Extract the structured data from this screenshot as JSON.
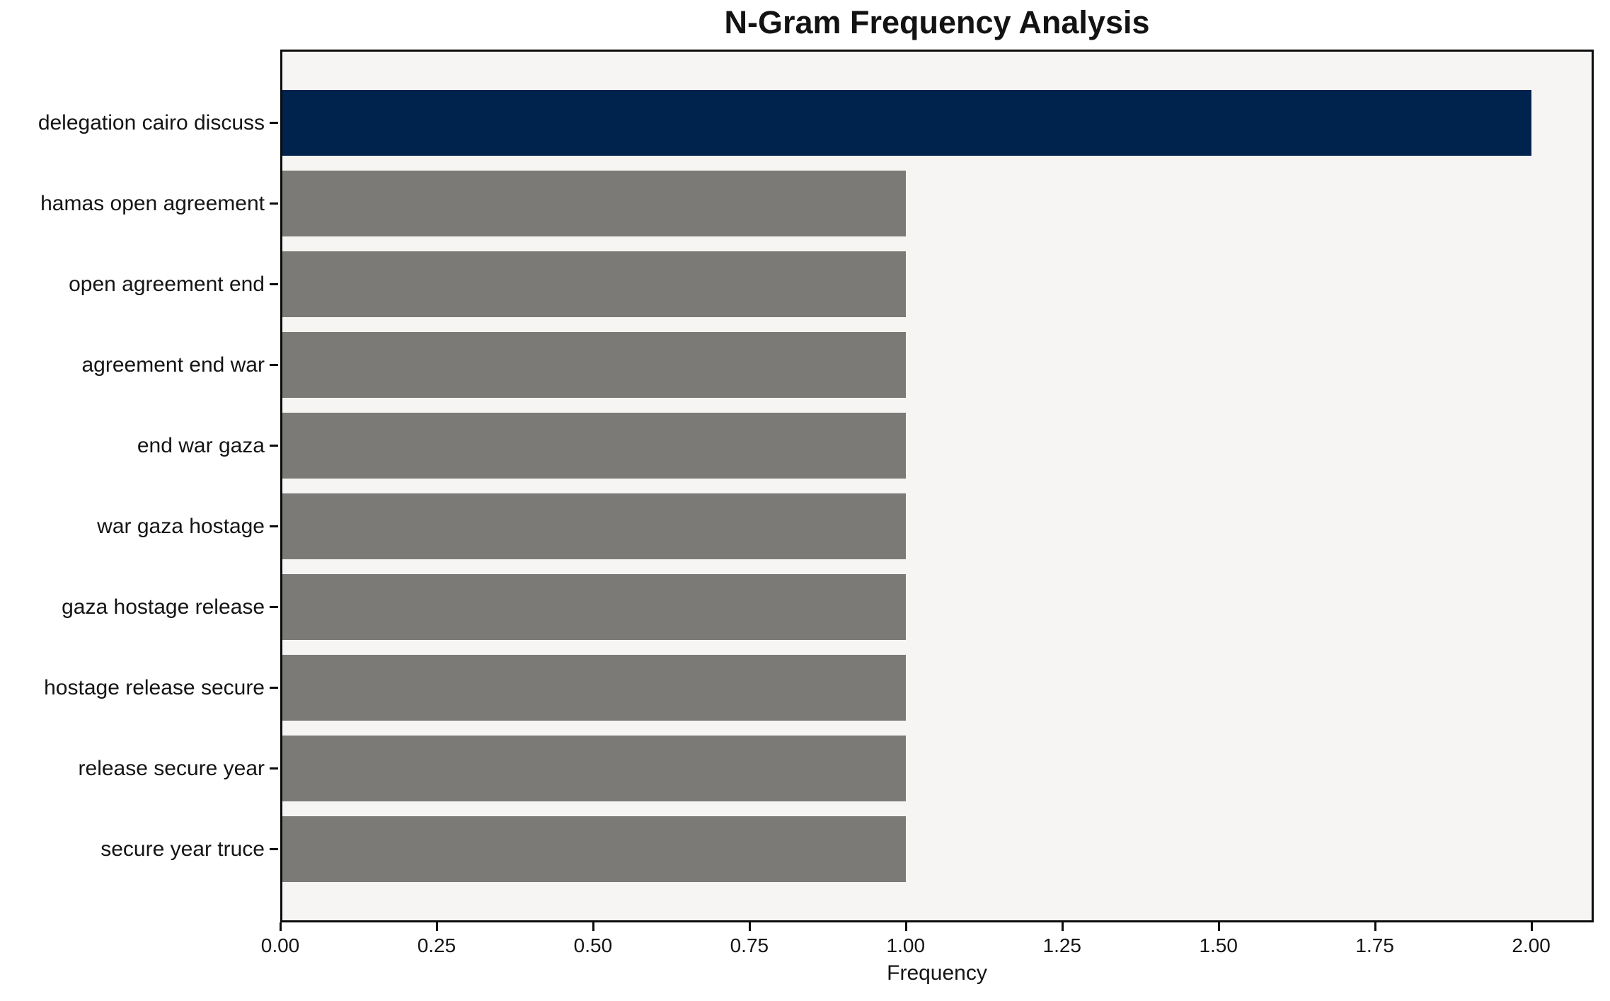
{
  "chart_data": {
    "type": "bar",
    "orientation": "horizontal",
    "title": "N-Gram Frequency Analysis",
    "xlabel": "Frequency",
    "ylabel": "",
    "categories": [
      "delegation cairo discuss",
      "hamas open agreement",
      "open agreement end",
      "agreement end war",
      "end war gaza",
      "war gaza hostage",
      "gaza hostage release",
      "hostage release secure",
      "release secure year",
      "secure year truce"
    ],
    "values": [
      2,
      1,
      1,
      1,
      1,
      1,
      1,
      1,
      1,
      1
    ],
    "highlight_index": 0,
    "x_tick_values": [
      0.0,
      0.25,
      0.5,
      0.75,
      1.0,
      1.25,
      1.5,
      1.75,
      2.0
    ],
    "x_tick_labels": [
      "0.00",
      "0.25",
      "0.50",
      "0.75",
      "1.00",
      "1.25",
      "1.50",
      "1.75",
      "2.00"
    ],
    "xlim": [
      0,
      2.1
    ],
    "grid": false,
    "legend_position": "none",
    "colors": {
      "highlight_bar": "#00234d",
      "default_bar": "#7b7a77",
      "plot_background": "#f6f5f4",
      "figure_background": "#ffffff",
      "axis_frame": "#0c0c0c",
      "text": "#151515"
    }
  }
}
